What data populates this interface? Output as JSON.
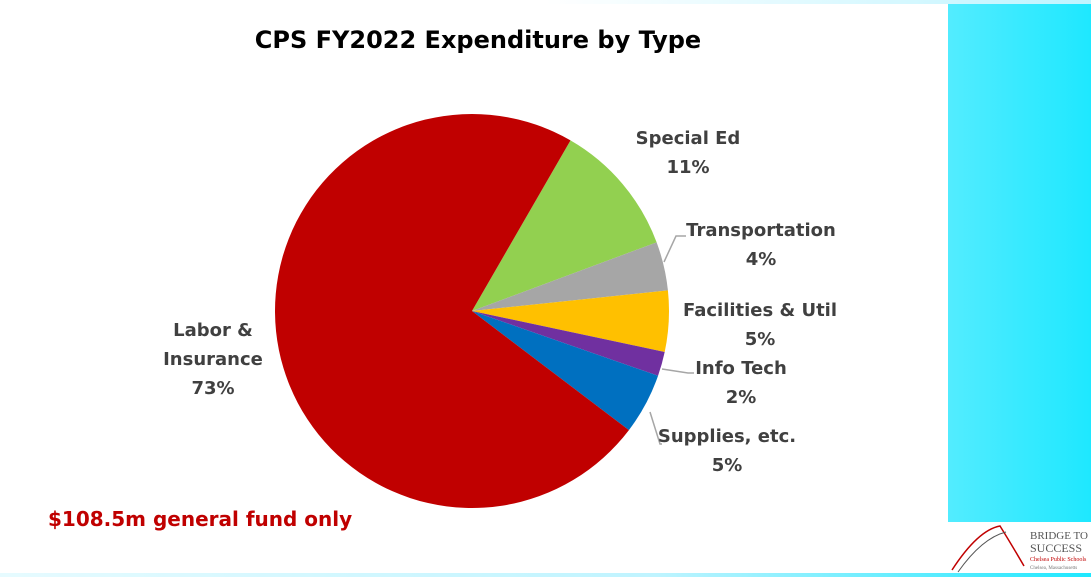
{
  "chart_data": {
    "type": "pie",
    "title": "CPS FY2022 Expenditure by Type",
    "categories": [
      "Special Ed",
      "Transportation",
      "Facilities & Util",
      "Info Tech",
      "Supplies, etc.",
      "Labor & Insurance"
    ],
    "values": [
      11,
      4,
      5,
      2,
      5,
      73
    ],
    "value_labels": [
      "11%",
      "4%",
      "5%",
      "2%",
      "5%",
      "73%"
    ],
    "colors": [
      "#92d050",
      "#a6a6a6",
      "#ffc000",
      "#7030a0",
      "#0070c0",
      "#c00000"
    ],
    "annotation": "$108.5m general fund only"
  },
  "logo": {
    "line1": "BRIDGE TO",
    "line2": "SUCCESS",
    "line3": "Chelsea Public Schools",
    "line4": "Chelsea, Massachusetts"
  }
}
